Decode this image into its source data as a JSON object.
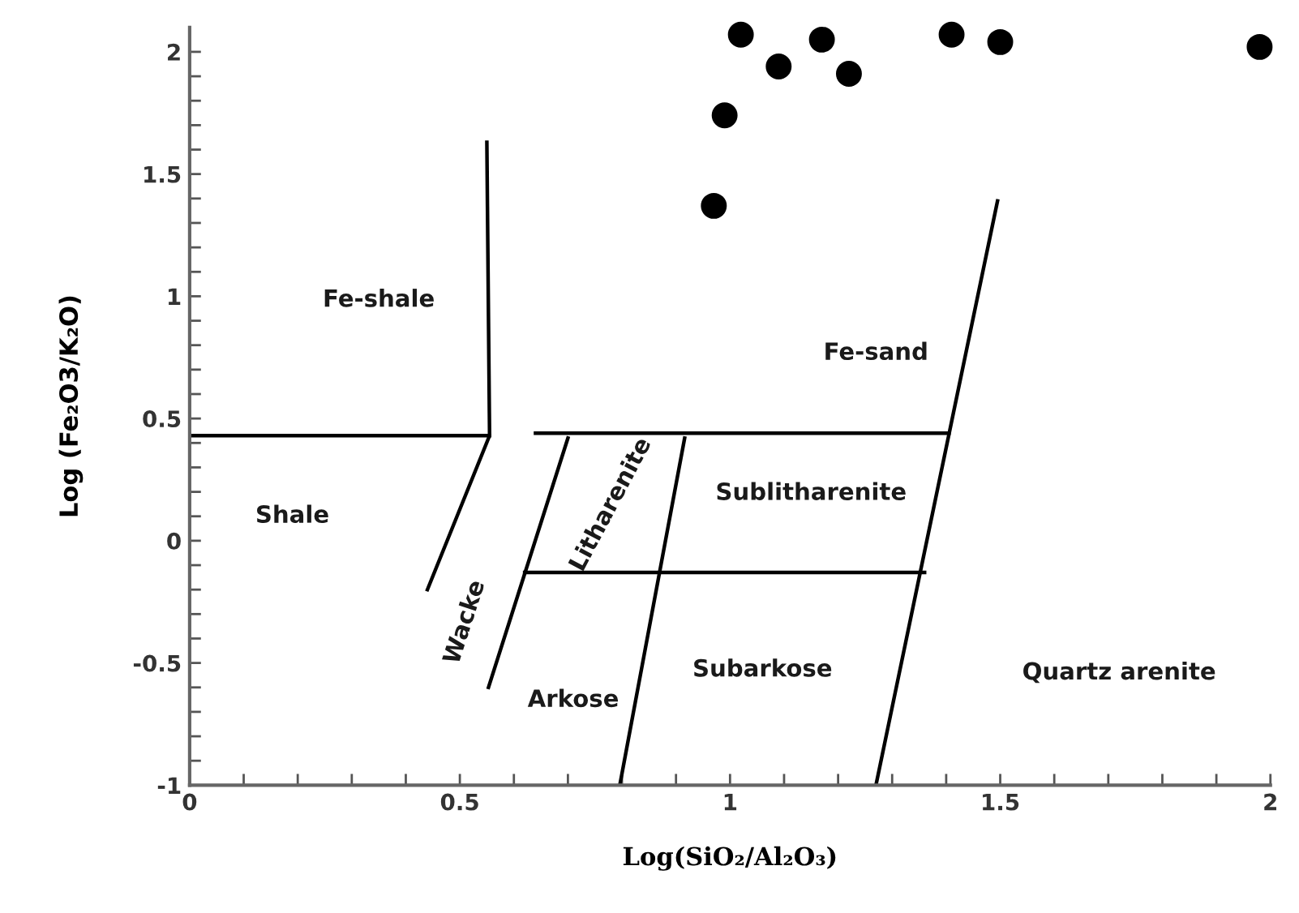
{
  "chart_data": {
    "type": "scatter",
    "xlabel": "Log(SiO₂/Al₂O₃)",
    "ylabel": "Log (Fe₂O3/K₂O)",
    "xlim": [
      0,
      2.0
    ],
    "ylim": [
      -1,
      2.1
    ],
    "xticks": [
      0,
      {
        "value": 0.1,
        "label": null
      },
      {
        "value": 0.2,
        "label": null
      },
      {
        "value": 0.3,
        "label": null
      },
      {
        "value": 0.4,
        "label": null
      },
      0.5,
      {
        "value": 0.6,
        "label": null
      },
      {
        "value": 0.7,
        "label": null
      },
      {
        "value": 0.8,
        "label": null
      },
      {
        "value": 0.9,
        "label": null
      },
      1,
      {
        "value": 1.1,
        "label": null
      },
      {
        "value": 1.2,
        "label": null
      },
      {
        "value": 1.3,
        "label": null
      },
      {
        "value": 1.4,
        "label": null
      },
      1.5,
      {
        "value": 1.6,
        "label": null
      },
      {
        "value": 1.7,
        "label": null
      },
      {
        "value": 1.8,
        "label": null
      },
      {
        "value": 1.9,
        "label": null
      },
      2
    ],
    "yticks": [
      -1,
      {
        "value": -0.9,
        "label": null
      },
      {
        "value": -0.8,
        "label": null
      },
      {
        "value": -0.7,
        "label": null
      },
      {
        "value": -0.6,
        "label": null
      },
      -0.5,
      {
        "value": -0.4,
        "label": null
      },
      {
        "value": -0.3,
        "label": null
      },
      {
        "value": -0.2,
        "label": null
      },
      {
        "value": -0.1,
        "label": null
      },
      0,
      {
        "value": 0.1,
        "label": null
      },
      {
        "value": 0.2,
        "label": null
      },
      {
        "value": 0.3,
        "label": null
      },
      {
        "value": 0.4,
        "label": null
      },
      0.5,
      {
        "value": 0.6,
        "label": null
      },
      {
        "value": 0.7,
        "label": null
      },
      {
        "value": 0.8,
        "label": null
      },
      {
        "value": 0.9,
        "label": null
      },
      1,
      {
        "value": 1.1,
        "label": null
      },
      {
        "value": 1.2,
        "label": null
      },
      {
        "value": 1.3,
        "label": null
      },
      {
        "value": 1.4,
        "label": null
      },
      1.5,
      {
        "value": 1.6,
        "label": null
      },
      {
        "value": 1.7,
        "label": null
      },
      {
        "value": 1.8,
        "label": null
      },
      {
        "value": 1.9,
        "label": null
      },
      2
    ],
    "grid": false,
    "legend": false,
    "series": [
      {
        "marker": "circle",
        "color": "#000000",
        "x": [
          1.02,
          1.17,
          1.41,
          1.5,
          1.98,
          1.09,
          1.22,
          0.99,
          0.97
        ],
        "values": [
          2.07,
          2.05,
          2.07,
          2.04,
          2.02,
          1.94,
          1.91,
          1.74,
          1.37
        ]
      },
      {
        "type": "line",
        "marker": "none",
        "color": "#000000",
        "x": [
          0,
          0.555
        ],
        "values": [
          0.43,
          0.43
        ]
      },
      {
        "type": "line",
        "marker": "none",
        "color": "#000000",
        "x": [
          0.64,
          1.405
        ],
        "values": [
          0.44,
          0.44
        ]
      },
      {
        "type": "line",
        "marker": "none",
        "color": "#000000",
        "x": [
          0.55,
          0.555,
          0.44
        ],
        "values": [
          1.63,
          0.43,
          -0.2
        ]
      },
      {
        "type": "line",
        "marker": "none",
        "color": "#000000",
        "x": [
          0.7,
          0.553
        ],
        "values": [
          0.42,
          -0.6
        ]
      },
      {
        "type": "line",
        "marker": "none",
        "color": "#000000",
        "x": [
          0.916,
          0.796
        ],
        "values": [
          0.42,
          -1
        ]
      },
      {
        "type": "line",
        "marker": "none",
        "color": "#000000",
        "x": [
          0.62,
          1.36
        ],
        "values": [
          -0.13,
          -0.13
        ]
      },
      {
        "type": "line",
        "marker": "none",
        "color": "#000000",
        "x": [
          1.495,
          1.27
        ],
        "values": [
          1.39,
          -1
        ]
      }
    ],
    "annotations": [
      "Fe-shale",
      "Fe-sand",
      "Shale",
      "Sublitharenite",
      "Litharenite",
      "Wacke",
      "Arkose",
      "Subarkose",
      "Quartz arenite"
    ]
  }
}
